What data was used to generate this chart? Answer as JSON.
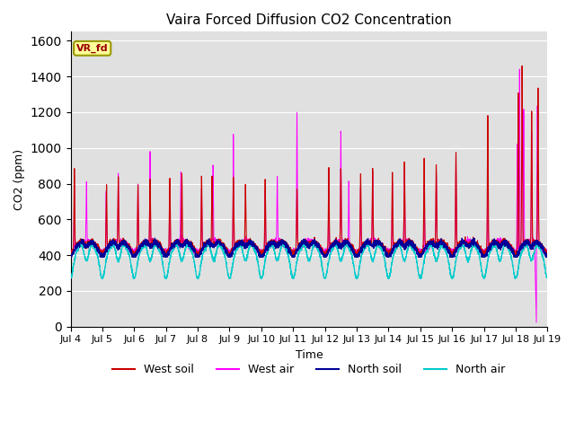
{
  "title": "Vaira Forced Diffusion CO2 Concentration",
  "xlabel": "Time",
  "ylabel": "CO2 (ppm)",
  "ylim": [
    0,
    1650
  ],
  "yticks": [
    0,
    200,
    400,
    600,
    800,
    1000,
    1200,
    1400,
    1600
  ],
  "xtick_labels": [
    "Jul 4",
    "Jul 5",
    "Jul 6",
    "Jul 7",
    "Jul 8",
    "Jul 9",
    "Jul 10",
    "Jul 11",
    "Jul 12",
    "Jul 13",
    "Jul 14",
    "Jul 15",
    "Jul 16",
    "Jul 17",
    "Jul 18",
    "Jul 19"
  ],
  "colors": {
    "west_soil": "#cc0000",
    "west_air": "#ff00ff",
    "north_soil": "#000099",
    "north_air": "#00cccc"
  },
  "background_color": "#e0e0e0",
  "annotation_text": "VR_fd",
  "annotation_facecolor": "#ffff99",
  "annotation_edgecolor": "#999900",
  "annotation_textcolor": "#990000",
  "legend_labels": [
    "West soil",
    "West air",
    "North soil",
    "North air"
  ]
}
